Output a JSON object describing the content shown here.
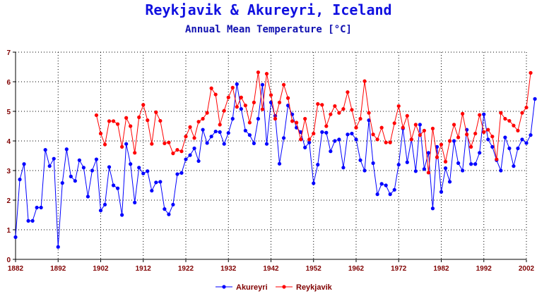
{
  "chart_data": {
    "type": "line",
    "title": "Reykjavik & Akureyri, Iceland",
    "subtitle": "Annual Mean Temperature [°C]",
    "xlim": [
      1882,
      2002
    ],
    "ylim": [
      0,
      7
    ],
    "xticks": [
      1882,
      1892,
      1902,
      1912,
      1922,
      1932,
      1942,
      1952,
      1962,
      1972,
      1982,
      1992,
      2002
    ],
    "yticks": [
      0,
      1,
      2,
      3,
      4,
      5,
      6,
      7
    ],
    "grid": true,
    "legend_position": "bottom-center",
    "series": [
      {
        "name": "Akureyri",
        "color": "#0000ff",
        "x_start": 1882,
        "values": [
          0.75,
          2.7,
          3.22,
          1.3,
          1.3,
          1.75,
          1.75,
          3.7,
          3.15,
          3.4,
          0.42,
          2.58,
          3.72,
          2.8,
          2.65,
          3.35,
          3.1,
          2.12,
          3.0,
          3.38,
          1.65,
          1.85,
          3.12,
          2.5,
          2.4,
          1.5,
          3.9,
          3.22,
          1.92,
          3.1,
          2.9,
          2.98,
          2.32,
          2.6,
          2.62,
          1.7,
          1.52,
          1.85,
          2.88,
          2.92,
          3.38,
          3.52,
          3.75,
          3.32,
          4.38,
          3.93,
          4.15,
          4.32,
          4.3,
          3.9,
          4.27,
          4.75,
          5.92,
          5.08,
          4.35,
          4.2,
          3.92,
          4.75,
          5.9,
          3.9,
          5.3,
          4.85,
          3.23,
          4.1,
          5.2,
          4.9,
          4.45,
          4.3,
          3.78,
          3.95,
          2.57,
          3.2,
          4.3,
          4.28,
          3.65,
          4.0,
          4.05,
          3.1,
          4.22,
          4.25,
          4.05,
          3.35,
          3.0,
          4.7,
          3.25,
          2.2,
          2.55,
          2.5,
          2.2,
          2.35,
          3.2,
          4.42,
          3.28,
          4.05,
          2.98,
          4.55,
          3.05,
          3.6,
          1.72,
          3.8,
          2.28,
          3.08,
          2.62,
          4.0,
          3.25,
          3.0,
          4.38,
          3.22,
          3.22,
          3.6,
          4.9,
          4.05,
          3.8,
          3.35,
          3.0,
          4.12,
          3.75,
          3.15,
          3.75,
          4.05,
          3.93,
          4.2,
          5.42
        ]
      },
      {
        "name": "Reykjavik",
        "color": "#ff0000",
        "x_start": 1901,
        "values": [
          4.87,
          4.25,
          3.88,
          4.67,
          4.67,
          4.57,
          3.8,
          4.78,
          4.5,
          3.6,
          4.8,
          5.22,
          4.7,
          3.9,
          4.97,
          4.68,
          3.92,
          3.95,
          3.58,
          3.7,
          3.65,
          4.15,
          4.47,
          4.1,
          4.65,
          4.75,
          4.95,
          5.78,
          5.57,
          4.55,
          5.02,
          5.47,
          5.8,
          5.15,
          5.47,
          5.2,
          4.62,
          5.3,
          6.32,
          5.07,
          6.27,
          5.55,
          4.75,
          5.3,
          5.9,
          5.45,
          4.67,
          4.62,
          4.05,
          4.75,
          4.05,
          4.25,
          5.25,
          5.22,
          4.5,
          4.9,
          5.18,
          4.95,
          5.08,
          5.65,
          5.05,
          4.45,
          4.75,
          6.02,
          4.95,
          4.22,
          4.05,
          4.45,
          3.95,
          3.95,
          4.6,
          5.18,
          4.45,
          4.85,
          4.05,
          4.55,
          4.2,
          4.35,
          2.93,
          4.42,
          3.45,
          3.88,
          3.3,
          4.0,
          4.55,
          4.12,
          4.92,
          4.22,
          3.8,
          4.25,
          4.88,
          4.3,
          4.38,
          4.15,
          3.38,
          4.95,
          4.75,
          4.68,
          4.52,
          4.35,
          4.95,
          5.13,
          6.3
        ]
      }
    ]
  }
}
